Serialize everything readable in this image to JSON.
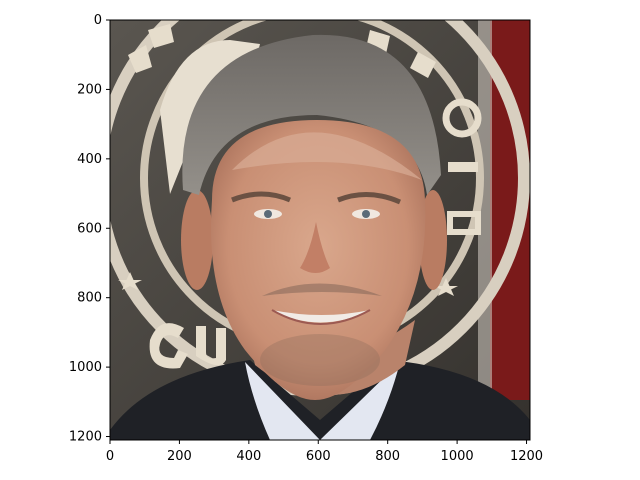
{
  "figure": {
    "background": "#ffffff",
    "image_content": "composite face portrait on award-logo backdrop",
    "backdrop_text": "ACTORS GUILD"
  },
  "colors": {
    "backdrop_dark": "#3f3c38",
    "backdrop_mid": "#6a665f",
    "ring_light": "#d8cfc0",
    "curtain_red": "#6e1414",
    "suit": "#1f2126",
    "shirt": "#dfe3ee",
    "skin": "#cf9a80",
    "skin_light": "#d9ac92",
    "hair": "#7d7975"
  },
  "axes": {
    "x_ticks": [
      "0",
      "200",
      "400",
      "600",
      "800",
      "1000",
      "1200"
    ],
    "y_ticks": [
      "0",
      "200",
      "400",
      "600",
      "800",
      "1000",
      "1200"
    ]
  }
}
